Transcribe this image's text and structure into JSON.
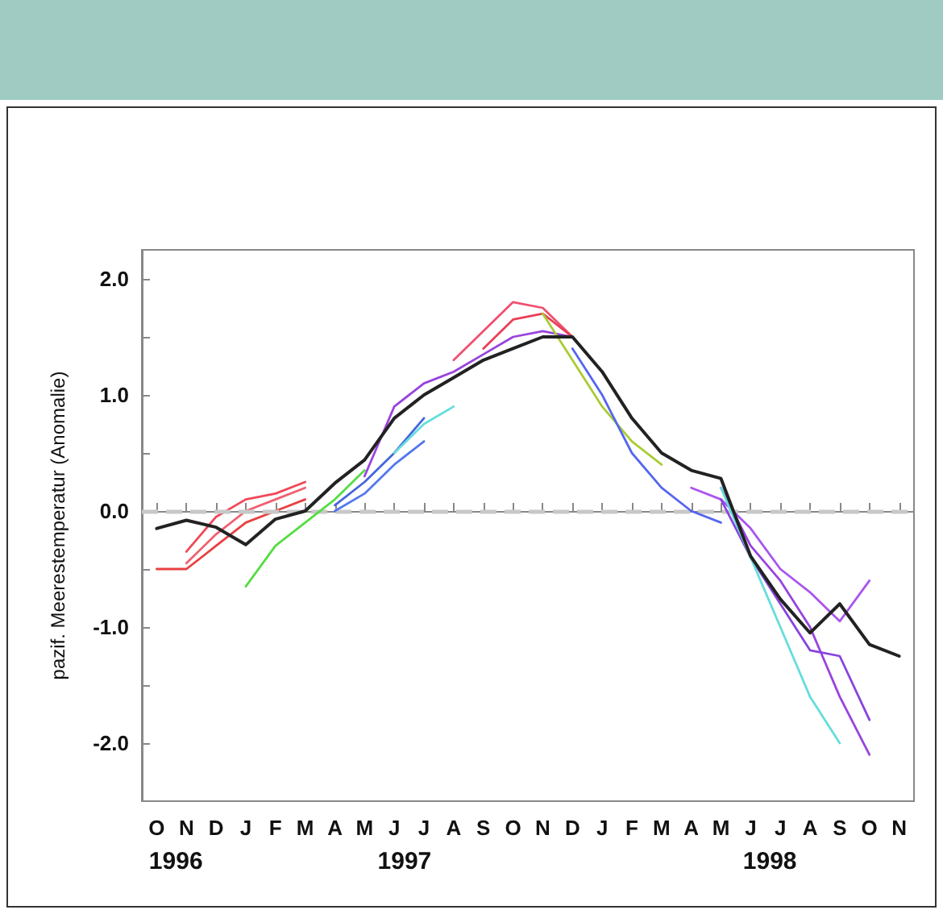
{
  "chart_data": {
    "type": "line",
    "ylabel": "pazif. Meerestemperatur (Anomalie)",
    "categories": [
      "O",
      "N",
      "D",
      "J",
      "F",
      "M",
      "A",
      "M",
      "J",
      "J",
      "A",
      "S",
      "O",
      "N",
      "D",
      "J",
      "F",
      "M",
      "A",
      "M",
      "J",
      "J",
      "A",
      "S",
      "O",
      "N"
    ],
    "annotations": [
      "1996",
      "1997",
      "1998"
    ],
    "ylim": [
      -2.5,
      2.25
    ],
    "yticks": [
      {
        "value": -2,
        "label": "-2.0"
      },
      {
        "value": -1.5,
        "label": null
      },
      {
        "value": -1,
        "label": "-1.0"
      },
      {
        "value": -0.5,
        "label": null
      },
      {
        "value": 0,
        "label": "0.0"
      },
      {
        "value": 0.5,
        "label": null
      },
      {
        "value": 1,
        "label": "1.0"
      },
      {
        "value": 1.5,
        "label": null
      },
      {
        "value": 2,
        "label": "2.0"
      }
    ],
    "ref_lines": [
      {
        "axis": "y",
        "value": 0,
        "label": null,
        "color": "#c8c8c8",
        "line_style": "dashed"
      }
    ],
    "grid": false,
    "marker": "none",
    "line_style": "solid",
    "series": [
      {
        "color": "#f06070",
        "values": [
          null,
          -0.45,
          -0.2,
          0.0,
          0.1,
          0.2,
          null,
          null,
          null,
          null,
          null,
          null,
          null,
          null,
          null,
          null,
          null,
          null,
          null,
          null,
          null,
          null,
          null,
          null,
          null,
          null
        ]
      },
      {
        "color": "#f04858",
        "values": [
          null,
          -0.35,
          -0.05,
          0.1,
          0.15,
          0.25,
          null,
          null,
          null,
          null,
          null,
          null,
          null,
          null,
          null,
          null,
          null,
          null,
          null,
          null,
          null,
          null,
          null,
          null,
          null,
          null
        ]
      },
      {
        "color": "#e84040",
        "values": [
          -0.5,
          -0.5,
          -0.3,
          -0.1,
          0.0,
          0.1,
          null,
          null,
          null,
          null,
          null,
          null,
          null,
          null,
          null,
          null,
          null,
          null,
          null,
          null,
          null,
          null,
          null,
          null,
          null,
          null
        ]
      },
      {
        "color": "#55dd44",
        "values": [
          null,
          null,
          null,
          -0.65,
          -0.3,
          -0.1,
          0.1,
          0.35,
          null,
          null,
          null,
          null,
          null,
          null,
          null,
          null,
          null,
          null,
          null,
          null,
          null,
          null,
          null,
          null,
          null,
          null
        ]
      },
      {
        "color": "#5577ee",
        "values": [
          null,
          null,
          null,
          null,
          null,
          null,
          0.0,
          0.15,
          0.4,
          0.6,
          null,
          null,
          null,
          null,
          null,
          null,
          null,
          null,
          null,
          null,
          null,
          null,
          null,
          null,
          null,
          null
        ]
      },
      {
        "color": "#4466dd",
        "values": [
          null,
          null,
          null,
          null,
          null,
          null,
          0.05,
          0.25,
          0.5,
          0.8,
          null,
          null,
          null,
          null,
          null,
          null,
          null,
          null,
          null,
          null,
          null,
          null,
          null,
          null,
          null,
          null
        ]
      },
      {
        "color": "#66dddd",
        "values": [
          null,
          null,
          null,
          null,
          null,
          null,
          null,
          null,
          0.5,
          0.75,
          0.9,
          null,
          null,
          null,
          null,
          null,
          null,
          null,
          null,
          null,
          null,
          null,
          null,
          null,
          null,
          null
        ]
      },
      {
        "color": "#9944dd",
        "values": [
          null,
          null,
          null,
          null,
          null,
          null,
          null,
          0.3,
          0.9,
          1.1,
          1.2,
          1.35,
          1.5,
          1.55,
          1.5,
          null,
          null,
          null,
          null,
          null,
          null,
          null,
          null,
          null,
          null,
          null
        ]
      },
      {
        "color": "#f05070",
        "values": [
          null,
          null,
          null,
          null,
          null,
          null,
          null,
          null,
          null,
          null,
          1.3,
          1.55,
          1.8,
          1.75,
          1.5,
          null,
          null,
          null,
          null,
          null,
          null,
          null,
          null,
          null,
          null,
          null
        ]
      },
      {
        "color": "#e84058",
        "values": [
          null,
          null,
          null,
          null,
          null,
          null,
          null,
          null,
          null,
          null,
          null,
          1.4,
          1.65,
          1.7,
          1.5,
          1.2,
          null,
          null,
          null,
          null,
          null,
          null,
          null,
          null,
          null,
          null
        ]
      },
      {
        "color": "#aacc33",
        "values": [
          null,
          null,
          null,
          null,
          null,
          null,
          null,
          null,
          null,
          null,
          null,
          null,
          null,
          1.7,
          1.3,
          0.9,
          0.6,
          0.4,
          null,
          null,
          null,
          null,
          null,
          null,
          null,
          null
        ]
      },
      {
        "color": "#5566ee",
        "values": [
          null,
          null,
          null,
          null,
          null,
          null,
          null,
          null,
          null,
          null,
          null,
          null,
          null,
          null,
          1.4,
          1.0,
          0.5,
          0.2,
          0.0,
          -0.1,
          null,
          null,
          null,
          null,
          null,
          null
        ]
      },
      {
        "color": "#9944dd",
        "values": [
          null,
          null,
          null,
          null,
          null,
          null,
          null,
          null,
          null,
          null,
          null,
          null,
          null,
          null,
          null,
          null,
          null,
          null,
          null,
          0.2,
          -0.3,
          -0.6,
          -1.0,
          -1.6,
          -2.1,
          null
        ]
      },
      {
        "color": "#aa55ee",
        "values": [
          null,
          null,
          null,
          null,
          null,
          null,
          null,
          null,
          null,
          null,
          null,
          null,
          null,
          null,
          null,
          null,
          null,
          null,
          0.2,
          0.1,
          -0.15,
          -0.5,
          -0.7,
          -0.95,
          -0.6,
          null
        ]
      },
      {
        "color": "#8844dd",
        "values": [
          null,
          null,
          null,
          null,
          null,
          null,
          null,
          null,
          null,
          null,
          null,
          null,
          null,
          null,
          null,
          null,
          null,
          null,
          null,
          0.1,
          -0.4,
          -0.8,
          -1.2,
          -1.25,
          -1.8,
          null
        ]
      },
      {
        "color": "#66dddd",
        "values": [
          null,
          null,
          null,
          null,
          null,
          null,
          null,
          null,
          null,
          null,
          null,
          null,
          null,
          null,
          null,
          null,
          null,
          null,
          null,
          0.2,
          -0.4,
          -1.0,
          -1.6,
          -2.0,
          null,
          null
        ]
      },
      {
        "color": "#222222",
        "values": [
          -0.15,
          -0.08,
          -0.14,
          -0.29,
          -0.07,
          0.0,
          0.24,
          0.44,
          0.8,
          1.0,
          1.15,
          1.3,
          1.4,
          1.5,
          1.5,
          1.2,
          0.8,
          0.5,
          0.35,
          0.28,
          -0.39,
          -0.76,
          -1.05,
          -0.8,
          -1.15,
          -1.25
        ]
      }
    ]
  }
}
